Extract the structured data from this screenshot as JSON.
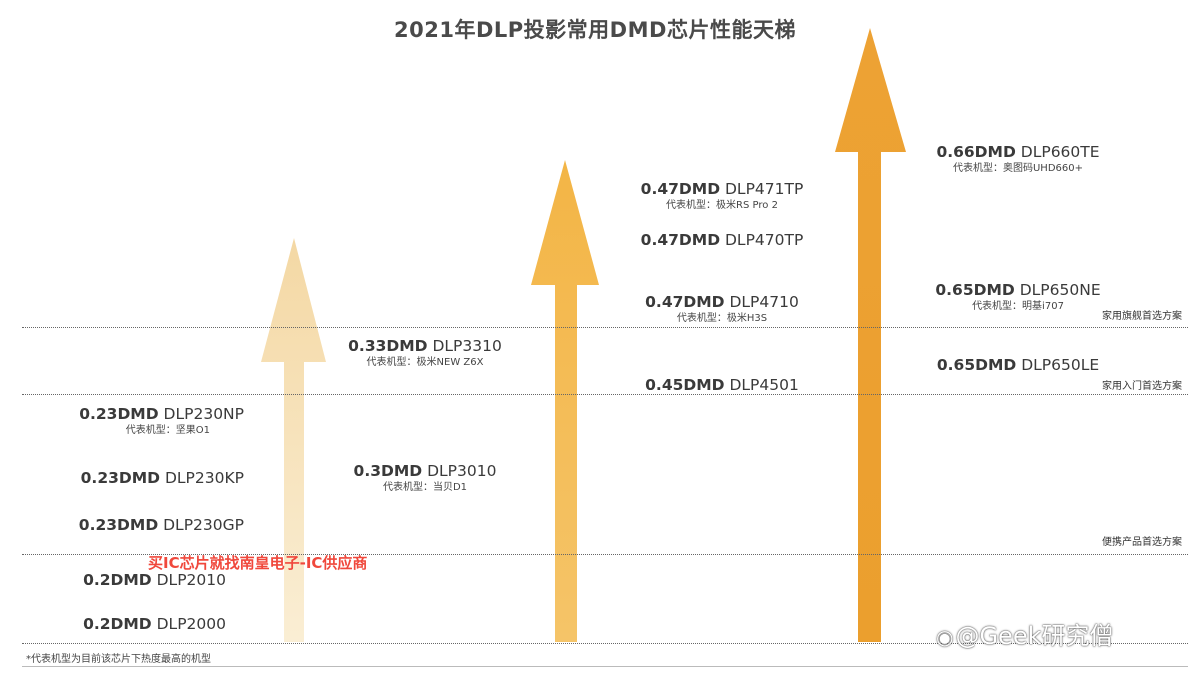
{
  "title": "2021年DLP投影常用DMD芯片性能天梯",
  "colors": {
    "arrow1": "#f6dfb4",
    "arrow2": "#f2b54c",
    "arrow3": "#eea536",
    "accent_promo": "#f0483c"
  },
  "chips": {
    "c1": {
      "bold": "0.23DMD",
      "model": "DLP230NP",
      "rep": "代表机型：坚果O1"
    },
    "c2": {
      "bold": "0.23DMD",
      "model": "DLP230KP"
    },
    "c3": {
      "bold": "0.23DMD",
      "model": "DLP230GP"
    },
    "c4": {
      "bold": "0.2DMD",
      "model": "DLP2010"
    },
    "c5": {
      "bold": "0.2DMD",
      "model": "DLP2000"
    },
    "c6": {
      "bold": "0.33DMD",
      "model": "DLP3310",
      "rep": "代表机型：极米NEW  Z6X"
    },
    "c7": {
      "bold": "0.3DMD",
      "model": "DLP3010",
      "rep": "代表机型：当贝D1"
    },
    "c8": {
      "bold": "0.47DMD",
      "model": "DLP471TP",
      "rep": "代表机型：极米RS Pro 2"
    },
    "c9": {
      "bold": "0.47DMD",
      "model": "DLP470TP"
    },
    "c10": {
      "bold": "0.47DMD",
      "model": "DLP4710",
      "rep": "代表机型：极米H3S"
    },
    "c11": {
      "bold": "0.45DMD",
      "model": "DLP4501"
    },
    "c12": {
      "bold": "0.66DMD",
      "model": "DLP660TE",
      "rep": "代表机型：奥图码UHD660+"
    },
    "c13": {
      "bold": "0.65DMD",
      "model": "DLP650NE",
      "rep": "代表机型：明基i707"
    },
    "c14": {
      "bold": "0.65DMD",
      "model": "DLP650LE"
    }
  },
  "categories": {
    "flagship": "家用旗舰首选方案",
    "entry": "家用入门首选方案",
    "portable": "便携产品首选方案"
  },
  "footnote": "*代表机型为目前该芯片下热度最高的机型",
  "promo": "买IC芯片就找南皇电子-IC供应商",
  "watermark": "@Geek研究僧",
  "watermark_icon": "weibo-logo-icon"
}
